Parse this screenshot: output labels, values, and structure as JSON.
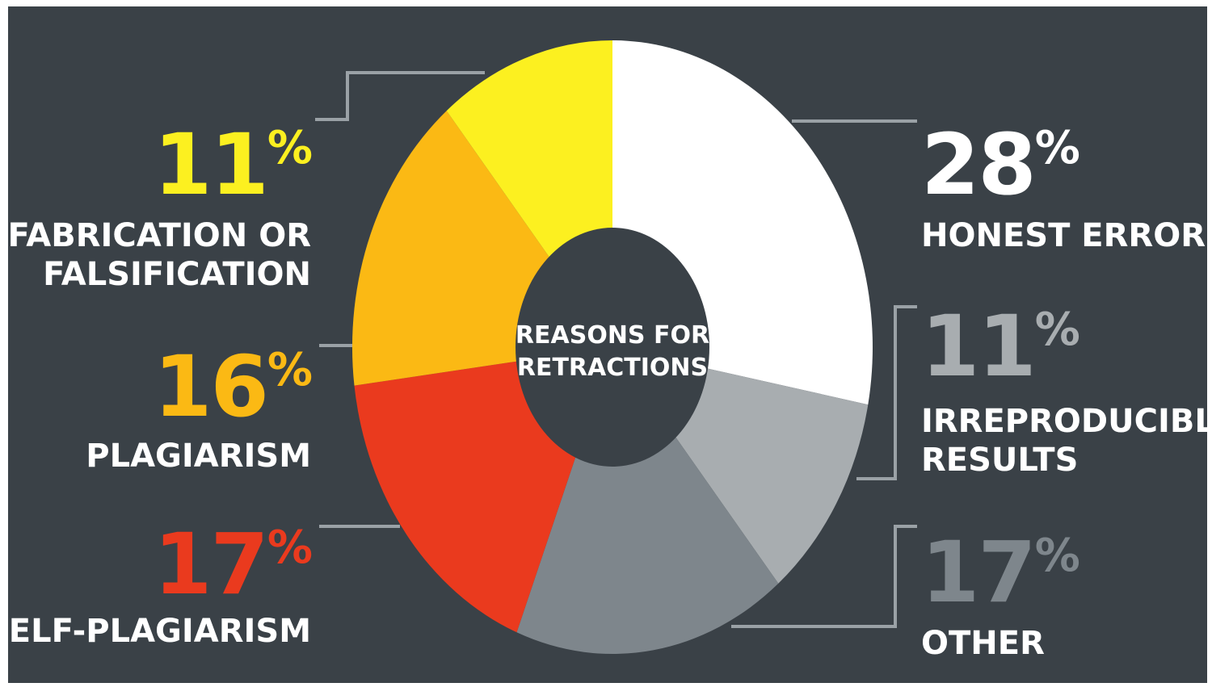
{
  "chart_data": {
    "type": "pie",
    "title": "REASONS FOR RETRACTIONS",
    "slices": [
      {
        "label": "HONEST ERROR",
        "value": 28,
        "display": "28%",
        "color": "#ffffff"
      },
      {
        "label": "IRREPRODUCIBLE RESULTS",
        "value": 11,
        "display": "11%",
        "color": "#a8adb0"
      },
      {
        "label": "OTHER",
        "value": 17,
        "display": "17%",
        "color": "#7e868c"
      },
      {
        "label": "SELF-PLAGIARISM",
        "value": 17,
        "display": "17%",
        "color": "#ea3a1e"
      },
      {
        "label": "PLAGIARISM",
        "value": 16,
        "display": "16%",
        "color": "#fbb914"
      },
      {
        "label": "FABRICATION OR FALSIFICATION",
        "value": 11,
        "display": "11%",
        "color": "#fcf020"
      }
    ],
    "label_colors": {
      "HONEST ERROR": "#ffffff",
      "IRREPRODUCIBLE RESULTS": "#a8adb0",
      "OTHER": "#7e868c",
      "SELF-PLAGIARISM": "#ea3a1e",
      "PLAGIARISM": "#fbb914",
      "FABRICATION OR FALSIFICATION": "#fcf020"
    },
    "background": "#3a4147",
    "leader_color": "#9aa1a6"
  }
}
